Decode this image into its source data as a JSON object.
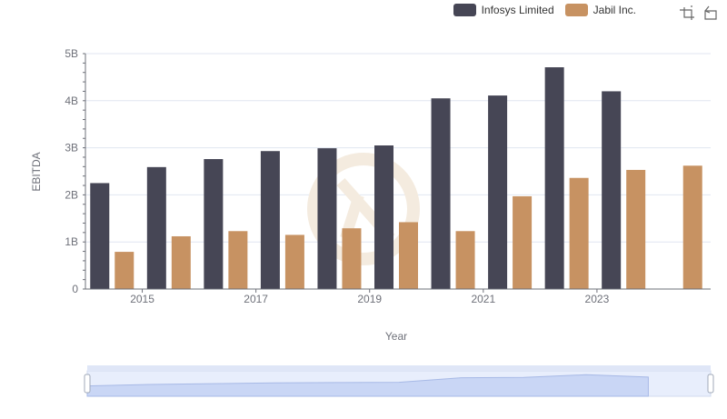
{
  "chart_data": {
    "type": "bar",
    "xlabel": "Year",
    "ylabel": "EBITDA",
    "x_ticks": [
      "2015",
      "2017",
      "2019",
      "2021",
      "2023"
    ],
    "y_ticks": [
      "0",
      "1B",
      "2B",
      "3B",
      "4B",
      "5B"
    ],
    "ylim": [
      0,
      5000000000
    ],
    "categories": [
      "2014",
      "2015",
      "2016",
      "2017",
      "2018",
      "2019",
      "2020",
      "2021",
      "2022",
      "2023",
      "2024"
    ],
    "series": [
      {
        "name": "Infosys Limited",
        "color": "#464655",
        "values": [
          2250000000,
          2590000000,
          2760000000,
          2930000000,
          2990000000,
          3050000000,
          4050000000,
          4110000000,
          4710000000,
          4200000000,
          null
        ]
      },
      {
        "name": "Jabil Inc.",
        "color": "#c79262",
        "values": [
          790000000,
          1120000000,
          1230000000,
          1150000000,
          1290000000,
          1420000000,
          1230000000,
          1970000000,
          2360000000,
          2530000000,
          2620000000
        ]
      }
    ],
    "grid": true,
    "legend_position": "top-right"
  },
  "toolbox": {
    "zoom_icon": "zoom-icon",
    "restore_icon": "restore-icon"
  }
}
